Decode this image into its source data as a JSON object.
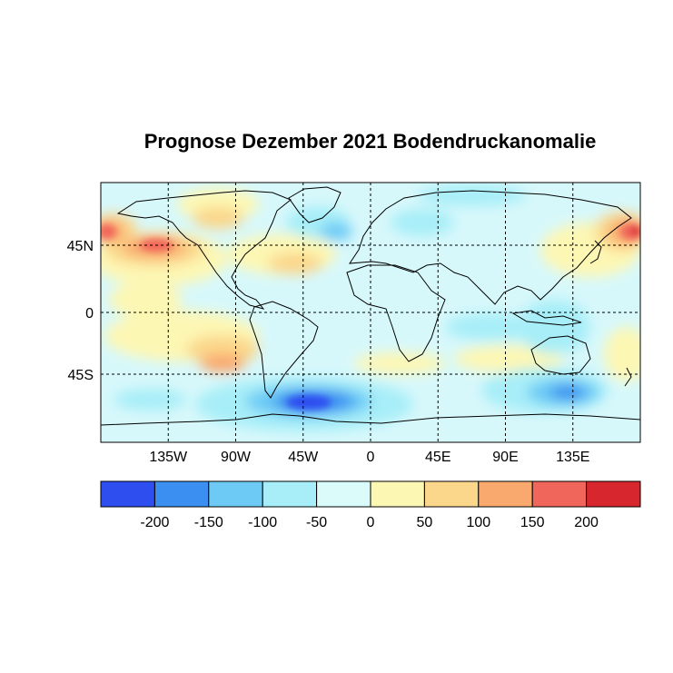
{
  "title": "Prognose Dezember 2021 Bodendruckanomalie",
  "map": {
    "lon_ticks": [
      "135W",
      "90W",
      "45W",
      "0",
      "45E",
      "90E",
      "135E"
    ],
    "lat_ticks": [
      "45N",
      "0",
      "45S"
    ],
    "ocean_base_color": "#d7f8fb",
    "land_outline_color": "#000000"
  },
  "colorbar": {
    "labels": [
      "-200",
      "-150",
      "-100",
      "-50",
      "0",
      "50",
      "100",
      "150",
      "200"
    ],
    "colors": [
      "#2e4ef0",
      "#3b8ff0",
      "#6ccaf5",
      "#a7eef8",
      "#dbfbfa",
      "#fdf7b4",
      "#fbd78b",
      "#f9a86e",
      "#f0665a",
      "#d7262d"
    ]
  },
  "anomaly_regions": [
    {
      "name": "North Pacific high",
      "level": 150
    },
    {
      "name": "NW Pacific high",
      "level": 200
    },
    {
      "name": "North Atlantic high",
      "level": 100
    },
    {
      "name": "South Pacific high",
      "level": 100
    },
    {
      "name": "Weddell Sea low",
      "level": -200
    },
    {
      "name": "Southern Ocean low (Australia)",
      "level": -150
    },
    {
      "name": "Greenland low",
      "level": -100
    }
  ]
}
